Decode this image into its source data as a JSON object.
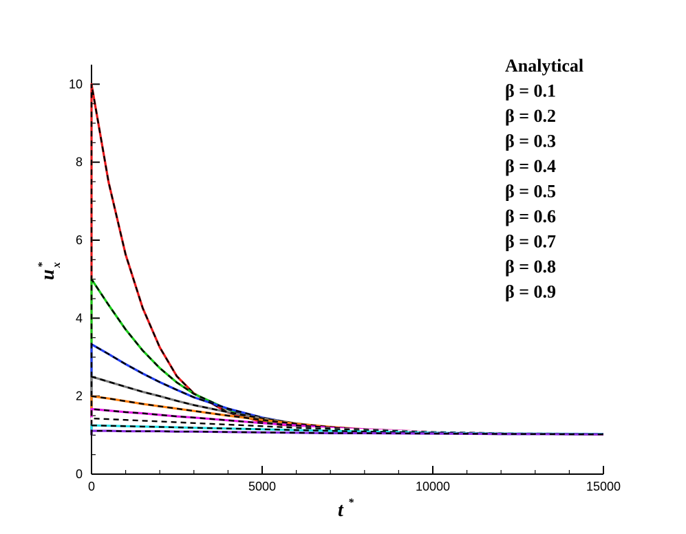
{
  "chart_data": {
    "type": "line",
    "title": "",
    "xlabel": "t",
    "xlabel_sup": "*",
    "ylabel": "u",
    "ylabel_sub": "x",
    "ylabel_sup": "*",
    "xlim": [
      0,
      15000
    ],
    "ylim": [
      0,
      10.5
    ],
    "x_ticks": [
      0,
      5000,
      10000,
      15000
    ],
    "x_tick_labels": [
      "0",
      "5000",
      "10000",
      "15000"
    ],
    "y_ticks": [
      0,
      2,
      4,
      6,
      8,
      10
    ],
    "y_tick_labels": [
      "0",
      "2",
      "4",
      "6",
      "8",
      "10"
    ],
    "grid": false,
    "legend_position": "top-right",
    "legend_entries": [
      "Analytical",
      "β = 0.1",
      "β = 0.2",
      "β = 0.3",
      "β = 0.4",
      "β = 0.5",
      "β = 0.6",
      "β = 0.7",
      "β = 0.8",
      "β = 0.9"
    ],
    "x": [
      0,
      500,
      1000,
      1500,
      2000,
      2500,
      3000,
      4000,
      5000,
      6000,
      7000,
      8000,
      10000,
      12000,
      15000
    ],
    "series": [
      {
        "name": "β = 0.1",
        "color": "#e8191b",
        "values": [
          10.0,
          7.49,
          5.63,
          4.26,
          3.25,
          2.51,
          2.07,
          1.58,
          1.34,
          1.2,
          1.14,
          1.09,
          1.05,
          1.03,
          1.02
        ]
      },
      {
        "name": "β = 0.2",
        "color": "#19c919",
        "values": [
          5.0,
          4.34,
          3.71,
          3.17,
          2.72,
          2.35,
          2.06,
          1.66,
          1.39,
          1.24,
          1.16,
          1.1,
          1.05,
          1.03,
          1.02
        ]
      },
      {
        "name": "β = 0.3",
        "color": "#1f3cf0",
        "values": [
          3.33,
          3.08,
          2.82,
          2.58,
          2.36,
          2.16,
          1.97,
          1.68,
          1.45,
          1.29,
          1.19,
          1.13,
          1.06,
          1.03,
          1.02
        ]
      },
      {
        "name": "β = 0.4",
        "color": "#7a7a7a",
        "values": [
          2.5,
          2.37,
          2.24,
          2.11,
          2.0,
          1.88,
          1.77,
          1.59,
          1.43,
          1.3,
          1.2,
          1.14,
          1.07,
          1.04,
          1.02
        ]
      },
      {
        "name": "β = 0.5",
        "color": "#ff7f0e",
        "values": [
          2.0,
          1.94,
          1.87,
          1.8,
          1.74,
          1.68,
          1.62,
          1.5,
          1.39,
          1.29,
          1.21,
          1.15,
          1.08,
          1.04,
          1.02
        ]
      },
      {
        "name": "β = 0.6",
        "color": "#e619e6",
        "values": [
          1.67,
          1.63,
          1.59,
          1.56,
          1.52,
          1.48,
          1.45,
          1.38,
          1.31,
          1.25,
          1.19,
          1.15,
          1.08,
          1.05,
          1.02
        ]
      },
      {
        "name": "β = 0.7",
        "color": "#ffffff",
        "values": [
          1.43,
          1.41,
          1.39,
          1.37,
          1.35,
          1.33,
          1.31,
          1.27,
          1.23,
          1.19,
          1.16,
          1.13,
          1.08,
          1.05,
          1.03
        ]
      },
      {
        "name": "β = 0.8",
        "color": "#22e0e8",
        "values": [
          1.25,
          1.24,
          1.23,
          1.22,
          1.21,
          1.2,
          1.19,
          1.17,
          1.15,
          1.13,
          1.11,
          1.09,
          1.06,
          1.04,
          1.03
        ]
      },
      {
        "name": "β = 0.9",
        "color": "#8a2be2",
        "values": [
          1.11,
          1.11,
          1.1,
          1.1,
          1.1,
          1.09,
          1.09,
          1.08,
          1.07,
          1.06,
          1.05,
          1.05,
          1.04,
          1.03,
          1.02
        ]
      }
    ]
  }
}
